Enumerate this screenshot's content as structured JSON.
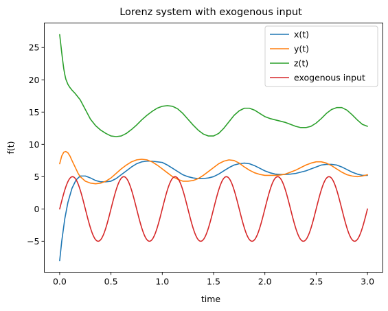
{
  "chart_data": {
    "type": "line",
    "title": "Lorenz system with exogenous input",
    "xlabel": "time",
    "ylabel": "f(t)",
    "xlim": [
      -0.15,
      3.15
    ],
    "ylim": [
      -9.8,
      28.8
    ],
    "xticks": [
      0.0,
      0.5,
      1.0,
      1.5,
      2.0,
      2.5,
      3.0
    ],
    "xtick_labels": [
      "0.0",
      "0.5",
      "1.0",
      "1.5",
      "2.0",
      "2.5",
      "3.0"
    ],
    "yticks": [
      -5,
      0,
      5,
      10,
      15,
      20,
      25
    ],
    "ytick_labels": [
      "−5",
      "0",
      "5",
      "10",
      "15",
      "20",
      "25"
    ],
    "grid": false,
    "legend_position": "top-right",
    "series": [
      {
        "name": "x(t)",
        "color": "#1f77b4",
        "x": [
          0.0,
          0.02,
          0.05,
          0.08,
          0.12,
          0.16,
          0.2,
          0.25,
          0.3,
          0.35,
          0.4,
          0.45,
          0.5,
          0.55,
          0.6,
          0.65,
          0.7,
          0.75,
          0.8,
          0.85,
          0.9,
          0.95,
          1.0,
          1.05,
          1.1,
          1.15,
          1.2,
          1.25,
          1.3,
          1.35,
          1.4,
          1.45,
          1.5,
          1.55,
          1.6,
          1.65,
          1.7,
          1.75,
          1.8,
          1.85,
          1.9,
          1.95,
          2.0,
          2.05,
          2.1,
          2.15,
          2.2,
          2.25,
          2.3,
          2.35,
          2.4,
          2.45,
          2.5,
          2.55,
          2.6,
          2.65,
          2.7,
          2.75,
          2.8,
          2.85,
          2.9,
          2.95,
          3.0
        ],
        "y": [
          -8.0,
          -5.0,
          -1.5,
          1.0,
          3.2,
          4.5,
          5.1,
          5.1,
          4.8,
          4.4,
          4.2,
          4.2,
          4.3,
          4.7,
          5.3,
          5.9,
          6.5,
          7.0,
          7.3,
          7.4,
          7.4,
          7.3,
          7.2,
          6.8,
          6.3,
          5.8,
          5.3,
          5.0,
          4.8,
          4.7,
          4.7,
          4.8,
          5.0,
          5.4,
          5.9,
          6.4,
          6.8,
          7.0,
          7.1,
          7.0,
          6.7,
          6.3,
          5.9,
          5.6,
          5.4,
          5.35,
          5.35,
          5.4,
          5.5,
          5.7,
          5.9,
          6.2,
          6.5,
          6.8,
          6.9,
          6.9,
          6.8,
          6.5,
          6.1,
          5.7,
          5.4,
          5.2,
          5.2
        ]
      },
      {
        "name": "y(t)",
        "color": "#ff7f0e",
        "x": [
          0.0,
          0.02,
          0.04,
          0.06,
          0.08,
          0.1,
          0.12,
          0.15,
          0.18,
          0.2,
          0.25,
          0.3,
          0.35,
          0.4,
          0.45,
          0.5,
          0.55,
          0.6,
          0.65,
          0.7,
          0.75,
          0.8,
          0.85,
          0.9,
          0.95,
          1.0,
          1.05,
          1.1,
          1.15,
          1.2,
          1.25,
          1.3,
          1.35,
          1.4,
          1.45,
          1.5,
          1.55,
          1.6,
          1.65,
          1.7,
          1.75,
          1.8,
          1.85,
          1.9,
          1.95,
          2.0,
          2.05,
          2.1,
          2.15,
          2.2,
          2.25,
          2.3,
          2.35,
          2.4,
          2.45,
          2.5,
          2.55,
          2.6,
          2.65,
          2.7,
          2.75,
          2.8,
          2.85,
          2.9,
          2.95,
          3.0
        ],
        "y": [
          7.0,
          8.2,
          8.8,
          8.9,
          8.7,
          8.2,
          7.5,
          6.5,
          5.5,
          5.0,
          4.3,
          4.0,
          3.9,
          4.0,
          4.3,
          4.8,
          5.5,
          6.2,
          6.8,
          7.3,
          7.6,
          7.7,
          7.6,
          7.3,
          6.8,
          6.2,
          5.6,
          5.0,
          4.6,
          4.3,
          4.3,
          4.4,
          4.7,
          5.2,
          5.8,
          6.4,
          7.0,
          7.4,
          7.6,
          7.5,
          7.1,
          6.5,
          6.0,
          5.6,
          5.35,
          5.2,
          5.2,
          5.2,
          5.25,
          5.4,
          5.7,
          6.0,
          6.4,
          6.8,
          7.1,
          7.3,
          7.3,
          7.1,
          6.7,
          6.2,
          5.7,
          5.3,
          5.1,
          5.0,
          5.1,
          5.3
        ]
      },
      {
        "name": "z(t)",
        "color": "#2ca02c",
        "x": [
          0.0,
          0.01,
          0.02,
          0.03,
          0.04,
          0.05,
          0.06,
          0.08,
          0.1,
          0.12,
          0.15,
          0.2,
          0.25,
          0.3,
          0.35,
          0.4,
          0.45,
          0.5,
          0.55,
          0.6,
          0.65,
          0.7,
          0.75,
          0.8,
          0.85,
          0.9,
          0.95,
          1.0,
          1.05,
          1.1,
          1.15,
          1.2,
          1.25,
          1.3,
          1.35,
          1.4,
          1.45,
          1.5,
          1.55,
          1.6,
          1.65,
          1.7,
          1.75,
          1.8,
          1.85,
          1.9,
          1.95,
          2.0,
          2.05,
          2.1,
          2.15,
          2.2,
          2.25,
          2.3,
          2.35,
          2.4,
          2.45,
          2.5,
          2.55,
          2.6,
          2.65,
          2.7,
          2.75,
          2.8,
          2.85,
          2.9,
          2.95,
          3.0
        ],
        "y": [
          27.0,
          25.6,
          24.2,
          22.9,
          21.7,
          20.8,
          20.1,
          19.3,
          18.8,
          18.4,
          17.9,
          16.9,
          15.4,
          13.9,
          12.9,
          12.2,
          11.7,
          11.3,
          11.2,
          11.3,
          11.7,
          12.3,
          13.0,
          13.8,
          14.5,
          15.1,
          15.6,
          15.9,
          16.0,
          15.9,
          15.5,
          14.8,
          13.9,
          13.0,
          12.2,
          11.6,
          11.3,
          11.3,
          11.7,
          12.5,
          13.5,
          14.5,
          15.2,
          15.6,
          15.6,
          15.3,
          14.8,
          14.3,
          14.0,
          13.8,
          13.6,
          13.4,
          13.1,
          12.8,
          12.6,
          12.6,
          12.8,
          13.3,
          14.0,
          14.8,
          15.4,
          15.7,
          15.7,
          15.3,
          14.6,
          13.8,
          13.1,
          12.8
        ]
      },
      {
        "name": "exogenous input",
        "color": "#d62728",
        "function": "5*sin(4*pi*t)",
        "t_start": 0.0,
        "t_end": 3.0,
        "amplitude": 5,
        "period": 0.5
      }
    ]
  }
}
